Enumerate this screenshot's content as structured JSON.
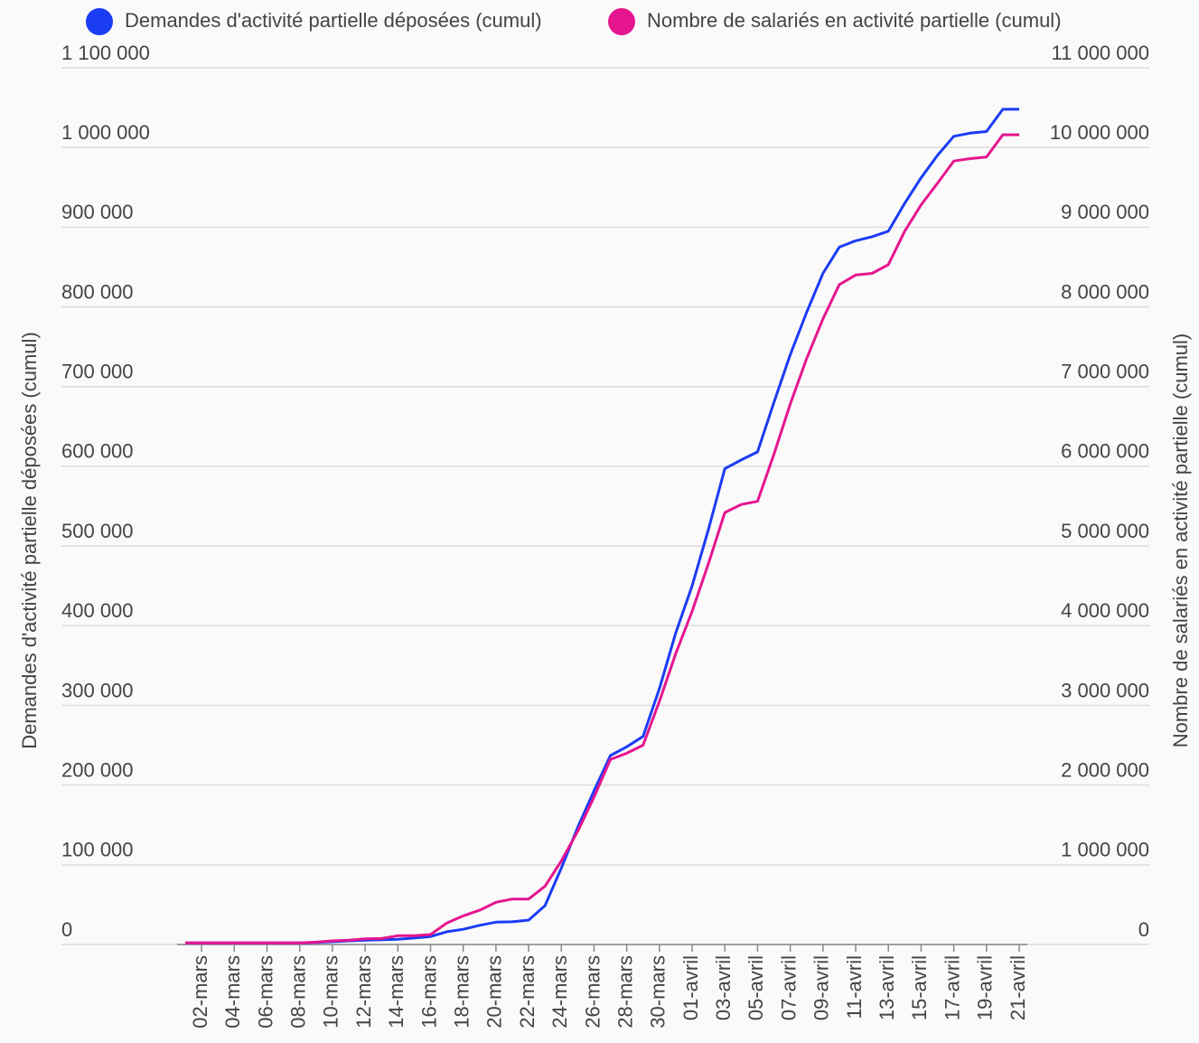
{
  "chart_data": {
    "type": "line",
    "categories": [
      null,
      "02-mars",
      null,
      "04-mars",
      null,
      "06-mars",
      null,
      "08-mars",
      null,
      "10-mars",
      null,
      "12-mars",
      null,
      "14-mars",
      null,
      "16-mars",
      null,
      "18-mars",
      null,
      "20-mars",
      null,
      "22-mars",
      null,
      "24-mars",
      null,
      "26-mars",
      null,
      "28-mars",
      null,
      "30-mars",
      null,
      "01-avril",
      null,
      "03-avril",
      null,
      "05-avril",
      null,
      "07-avril",
      null,
      "09-avril",
      null,
      "11-avril",
      null,
      "13-avril",
      null,
      "15-avril",
      null,
      "17-avril",
      null,
      "19-avril",
      null,
      "21-avril"
    ],
    "series": [
      {
        "name": "Demandes d'activité partielle déposées (cumul)",
        "color": "#1b3cf5",
        "values": [
          2000,
          2000,
          2000,
          2000,
          2000,
          2000,
          2000,
          2000,
          2500,
          3500,
          4500,
          5500,
          6000,
          6500,
          8000,
          10000,
          16000,
          19000,
          24000,
          28000,
          28500,
          30600,
          48800,
          96000,
          147000,
          193000,
          237000,
          248000,
          261000,
          321000,
          391000,
          450000,
          521000,
          597000,
          608000,
          618000,
          680000,
          740000,
          793000,
          842000,
          875000,
          883000,
          888000,
          895000,
          930000,
          962000,
          990000,
          1014000,
          1018000,
          1020000,
          1048000,
          1048000
        ]
      },
      {
        "name": "Nombre de salariés en activité partielle (cumul)",
        "color": "#e5158f",
        "axis": "y2",
        "values": [
          20000,
          20000,
          20000,
          20000,
          20000,
          20000,
          20000,
          20000,
          30000,
          45000,
          55000,
          70000,
          75000,
          110000,
          110000,
          125000,
          270000,
          360000,
          430000,
          530000,
          570000,
          570000,
          730000,
          1050000,
          1420000,
          1850000,
          2320000,
          2400000,
          2500000,
          3050000,
          3650000,
          4180000,
          4780000,
          5420000,
          5520000,
          5560000,
          6150000,
          6780000,
          7350000,
          7850000,
          8280000,
          8400000,
          8420000,
          8530000,
          8950000,
          9280000,
          9550000,
          9830000,
          9860000,
          9880000,
          10160000,
          10160000
        ]
      }
    ],
    "ylabel": "Demandes d'activité partielle déposées (cumul)",
    "y2label": "Nombre de salariés en activité partielle (cumul)",
    "ylim": [
      0,
      1100000
    ],
    "yticks": [
      0,
      {
        "value": 100000,
        "label": "100 000"
      },
      {
        "value": 200000,
        "label": "200 000"
      },
      {
        "value": 300000,
        "label": "300 000"
      },
      {
        "value": 400000,
        "label": "400 000"
      },
      {
        "value": 500000,
        "label": "500 000"
      },
      {
        "value": 600000,
        "label": "600 000"
      },
      {
        "value": 700000,
        "label": "700 000"
      },
      {
        "value": 800000,
        "label": "800 000"
      },
      {
        "value": 900000,
        "label": "900 000"
      },
      {
        "value": 1000000,
        "label": "1 000 000"
      },
      {
        "value": 1100000,
        "label": "1 100 000"
      }
    ],
    "y2lim": [
      0,
      11000000
    ],
    "y2ticks": [
      0,
      {
        "value": 1000000,
        "label": "1 000 000"
      },
      {
        "value": 2000000,
        "label": "2 000 000"
      },
      {
        "value": 3000000,
        "label": "3 000 000"
      },
      {
        "value": 4000000,
        "label": "4 000 000"
      },
      {
        "value": 5000000,
        "label": "5 000 000"
      },
      {
        "value": 6000000,
        "label": "6 000 000"
      },
      {
        "value": 7000000,
        "label": "7 000 000"
      },
      {
        "value": 8000000,
        "label": "8 000 000"
      },
      {
        "value": 9000000,
        "label": "9 000 000"
      },
      {
        "value": 10000000,
        "label": "10 000 000"
      },
      {
        "value": 11000000,
        "label": "11 000 000"
      }
    ],
    "grid": true,
    "legend": "top"
  }
}
